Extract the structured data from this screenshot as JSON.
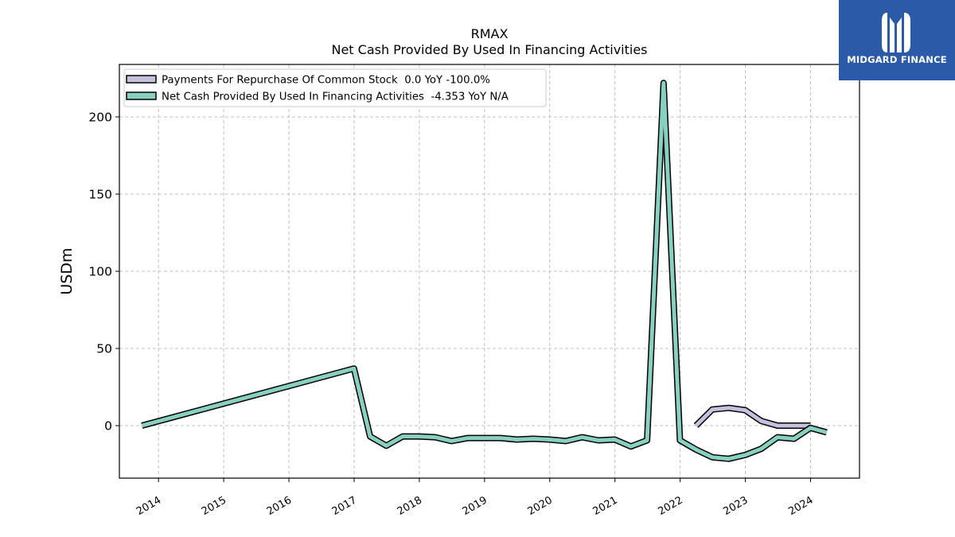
{
  "logo": {
    "text": "MIDGARD FINANCE"
  },
  "chart_data": {
    "type": "line",
    "title": "RMAX",
    "subtitle": "Net Cash Provided By Used In Financing Activities",
    "xlabel": "",
    "ylabel": "USDm",
    "xlim": [
      2013.4,
      2024.75
    ],
    "ylim": [
      -34,
      234
    ],
    "x_ticks": [
      "2014",
      "2015",
      "2016",
      "2017",
      "2018",
      "2019",
      "2020",
      "2021",
      "2022",
      "2023",
      "2024"
    ],
    "y_ticks": [
      0,
      50,
      100,
      150,
      200
    ],
    "grid": true,
    "legend_position": "top-left",
    "series": [
      {
        "name": "Payments For Repurchase Of Common Stock  0.0 YoY -100.0%",
        "color": "#c4c0de",
        "points": [
          [
            "2022-03-31",
            0
          ],
          [
            "2022-06-30",
            10.5
          ],
          [
            "2022-09-30",
            11.5
          ],
          [
            "2022-12-31",
            10
          ],
          [
            "2023-03-31",
            3
          ],
          [
            "2023-06-30",
            0
          ],
          [
            "2023-09-30",
            0
          ],
          [
            "2023-12-31",
            0
          ]
        ]
      },
      {
        "name": "Net Cash Provided By Used In Financing Activities  -4.353 YoY N/A",
        "color": "#88d0c0",
        "points": [
          [
            "2013-09-30",
            0
          ],
          [
            "2016-12-31",
            37
          ],
          [
            "2017-03-31",
            -7
          ],
          [
            "2017-06-30",
            -13
          ],
          [
            "2017-09-30",
            -7
          ],
          [
            "2017-12-31",
            -7
          ],
          [
            "2018-03-31",
            -7.5
          ],
          [
            "2018-06-30",
            -10
          ],
          [
            "2018-09-30",
            -8
          ],
          [
            "2018-12-31",
            -8
          ],
          [
            "2019-03-31",
            -8
          ],
          [
            "2019-06-30",
            -9
          ],
          [
            "2019-09-30",
            -8.5
          ],
          [
            "2019-12-31",
            -9
          ],
          [
            "2020-03-31",
            -10
          ],
          [
            "2020-06-30",
            -7.5
          ],
          [
            "2020-09-30",
            -9.5
          ],
          [
            "2020-12-31",
            -9
          ],
          [
            "2021-03-31",
            -13.5
          ],
          [
            "2021-06-30",
            -9.5
          ],
          [
            "2021-09-30",
            222
          ],
          [
            "2021-12-31",
            -9.5
          ],
          [
            "2022-03-31",
            -15.5
          ],
          [
            "2022-06-30",
            -20.5
          ],
          [
            "2022-09-30",
            -21.5
          ],
          [
            "2022-12-31",
            -19
          ],
          [
            "2023-03-31",
            -15
          ],
          [
            "2023-06-30",
            -7.5
          ],
          [
            "2023-09-30",
            -8.5
          ],
          [
            "2023-12-31",
            -1.5
          ],
          [
            "2024-03-31",
            -4.353
          ]
        ]
      }
    ]
  }
}
